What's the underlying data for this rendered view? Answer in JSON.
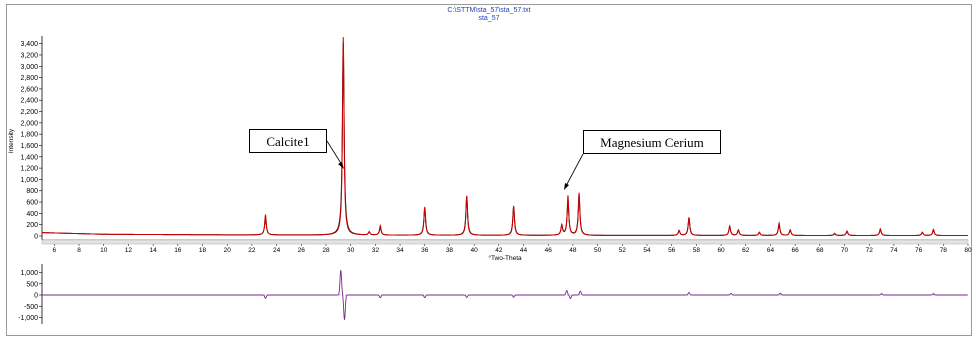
{
  "header": {
    "file_path": "C:\\STTM\\sta_57\\sta_57.txt",
    "sample_name": "sta_57"
  },
  "annotations": {
    "calcite_label": "Calcite1",
    "magnesium_cerium_label": "Magnesium Cerium"
  },
  "colors": {
    "observed": "#000000",
    "calculated": "#cc0000",
    "difference": "#7a2a8a",
    "header_text": "#1f3fbf"
  },
  "chart_data": [
    {
      "type": "line",
      "title": "",
      "xlabel": "°Two-Theta",
      "ylabel": "Intensity",
      "xlim": [
        5,
        80
      ],
      "ylim": [
        -50,
        3500
      ],
      "x_ticks": [
        "6",
        "8",
        "10",
        "12",
        "14",
        "16",
        "18",
        "20",
        "22",
        "24",
        "26",
        "28",
        "30",
        "32",
        "34",
        "36",
        "38",
        "40",
        "42",
        "44",
        "46",
        "48",
        "50",
        "52",
        "54",
        "56",
        "58",
        "60",
        "62",
        "64",
        "66",
        "68",
        "70",
        "72",
        "74",
        "76",
        "78",
        "80"
      ],
      "y_ticks": [
        "0",
        "200",
        "400",
        "600",
        "800",
        "1,000",
        "1,200",
        "1,400",
        "1,600",
        "1,800",
        "2,000",
        "2,200",
        "2,400",
        "2,600",
        "2,800",
        "3,000",
        "3,200",
        "3,400"
      ],
      "grid": false,
      "background_points": [
        [
          5,
          60
        ],
        [
          10,
          30
        ],
        [
          20,
          20
        ],
        [
          30,
          15
        ],
        [
          50,
          10
        ],
        [
          80,
          8
        ]
      ],
      "peaks": [
        {
          "x": 23.1,
          "calc": 360,
          "obs": 300
        },
        {
          "x": 29.4,
          "calc": 3500,
          "obs": 3400
        },
        {
          "x": 31.5,
          "calc": 60,
          "obs": 50
        },
        {
          "x": 32.4,
          "calc": 170,
          "obs": 130
        },
        {
          "x": 36.0,
          "calc": 500,
          "obs": 480
        },
        {
          "x": 39.4,
          "calc": 700,
          "obs": 680
        },
        {
          "x": 43.2,
          "calc": 520,
          "obs": 500
        },
        {
          "x": 47.1,
          "calc": 180,
          "obs": 160
        },
        {
          "x": 47.6,
          "calc": 700,
          "obs": 600
        },
        {
          "x": 48.5,
          "calc": 750,
          "obs": 700
        },
        {
          "x": 56.6,
          "calc": 90,
          "obs": 80
        },
        {
          "x": 57.4,
          "calc": 320,
          "obs": 300
        },
        {
          "x": 60.7,
          "calc": 170,
          "obs": 150
        },
        {
          "x": 61.4,
          "calc": 100,
          "obs": 90
        },
        {
          "x": 63.1,
          "calc": 60,
          "obs": 50
        },
        {
          "x": 64.7,
          "calc": 220,
          "obs": 190
        },
        {
          "x": 65.6,
          "calc": 100,
          "obs": 90
        },
        {
          "x": 69.2,
          "calc": 40,
          "obs": 30
        },
        {
          "x": 70.2,
          "calc": 80,
          "obs": 70
        },
        {
          "x": 72.9,
          "calc": 120,
          "obs": 100
        },
        {
          "x": 76.3,
          "calc": 60,
          "obs": 50
        },
        {
          "x": 77.2,
          "calc": 110,
          "obs": 90
        }
      ],
      "series": [
        {
          "name": "",
          "role": "observed",
          "color": "#000000"
        },
        {
          "name": "",
          "role": "calculated",
          "color": "#cc0000"
        }
      ]
    },
    {
      "type": "line",
      "title": "",
      "xlabel": "",
      "ylabel": "",
      "xlim": [
        5,
        80
      ],
      "ylim": [
        -1200,
        1200
      ],
      "y_ticks": [
        "1,000",
        "500",
        "0",
        "-500",
        "-1,000"
      ],
      "grid": false,
      "features": [
        {
          "x": 23.1,
          "amp": -150
        },
        {
          "x": 29.2,
          "amp": 1100
        },
        {
          "x": 29.5,
          "amp": -1100
        },
        {
          "x": 32.4,
          "amp": -120
        },
        {
          "x": 36.0,
          "amp": -120
        },
        {
          "x": 39.4,
          "amp": -110
        },
        {
          "x": 43.2,
          "amp": -100
        },
        {
          "x": 47.5,
          "amp": 200
        },
        {
          "x": 47.8,
          "amp": -160
        },
        {
          "x": 48.6,
          "amp": 170
        },
        {
          "x": 57.4,
          "amp": 110
        },
        {
          "x": 60.8,
          "amp": 70
        },
        {
          "x": 64.8,
          "amp": 80
        },
        {
          "x": 73.0,
          "amp": 60
        },
        {
          "x": 77.2,
          "amp": 60
        }
      ],
      "series": [
        {
          "name": "",
          "role": "difference",
          "color": "#7a2a8a"
        }
      ]
    }
  ]
}
